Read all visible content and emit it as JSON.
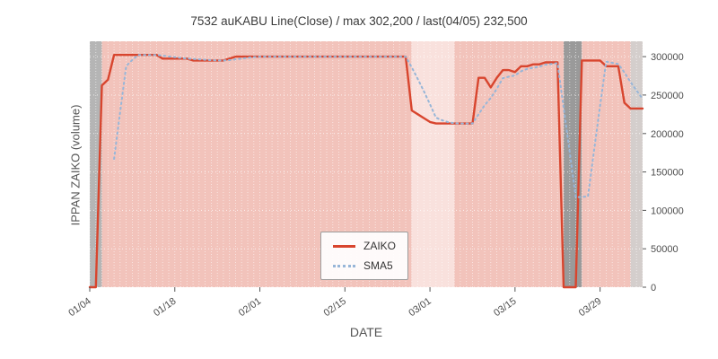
{
  "chart_data": {
    "type": "line",
    "title": "7532 auKABU Line(Close) / max 302,200 / last(04/05) 232,500",
    "xlabel": "DATE",
    "ylabel": "IPPAN ZAIKO (volume)",
    "ylim": [
      0,
      320000
    ],
    "yticks": [
      0,
      50000,
      100000,
      150000,
      200000,
      250000,
      300000
    ],
    "xtick_labels": [
      "01/04",
      "01/18",
      "02/01",
      "02/15",
      "03/01",
      "03/15",
      "03/29"
    ],
    "max_value": 302200,
    "last_value": 232500,
    "last_date": "04/05",
    "dates": [
      "01/04",
      "01/05",
      "01/06",
      "01/07",
      "01/08",
      "01/09",
      "01/10",
      "01/11",
      "01/12",
      "01/13",
      "01/14",
      "01/15",
      "01/16",
      "01/17",
      "01/18",
      "01/19",
      "01/20",
      "01/21",
      "01/22",
      "01/23",
      "01/24",
      "01/25",
      "01/26",
      "01/27",
      "01/28",
      "01/29",
      "01/30",
      "01/31",
      "02/01",
      "02/02",
      "02/03",
      "02/04",
      "02/05",
      "02/06",
      "02/07",
      "02/08",
      "02/09",
      "02/10",
      "02/11",
      "02/12",
      "02/13",
      "02/14",
      "02/15",
      "02/16",
      "02/17",
      "02/18",
      "02/19",
      "02/20",
      "02/21",
      "02/22",
      "02/23",
      "02/24",
      "02/25",
      "02/26",
      "02/27",
      "02/28",
      "03/01",
      "03/02",
      "03/03",
      "03/04",
      "03/05",
      "03/06",
      "03/07",
      "03/08",
      "03/09",
      "03/10",
      "03/11",
      "03/12",
      "03/13",
      "03/14",
      "03/15",
      "03/16",
      "03/17",
      "03/18",
      "03/19",
      "03/20",
      "03/21",
      "03/22",
      "03/23",
      "03/24",
      "03/25",
      "03/26",
      "03/27",
      "03/28",
      "03/29",
      "03/30",
      "03/31",
      "04/01",
      "04/02",
      "04/03",
      "04/04",
      "04/05"
    ],
    "series": [
      {
        "name": "ZAIKO",
        "color": "#d8452e",
        "style": "solid",
        "values": [
          0,
          0,
          262500,
          270000,
          302200,
          302200,
          302200,
          302200,
          302200,
          302200,
          302200,
          302200,
          297500,
          297500,
          297500,
          297500,
          297500,
          295000,
          295000,
          295000,
          295000,
          295000,
          295000,
          297500,
          300000,
          300000,
          300000,
          300000,
          300000,
          300000,
          300000,
          300000,
          300000,
          300000,
          300000,
          300000,
          300000,
          300000,
          300000,
          300000,
          300000,
          300000,
          300000,
          300000,
          300000,
          300000,
          300000,
          300000,
          300000,
          300000,
          300000,
          300000,
          300000,
          230000,
          225000,
          220000,
          215000,
          213000,
          213000,
          213000,
          213000,
          213000,
          213000,
          213000,
          272500,
          272500,
          260000,
          272500,
          282500,
          282500,
          280000,
          287500,
          287500,
          290000,
          290000,
          292500,
          292500,
          292500,
          0,
          0,
          0,
          295000,
          295000,
          295000,
          295000,
          287500,
          287500,
          287500,
          240000,
          232500,
          232500,
          232500
        ]
      },
      {
        "name": "SMA5",
        "color": "#97b6d8",
        "style": "dotted",
        "values": [
          null,
          null,
          null,
          null,
          166940,
          227380,
          287820,
          295760,
          302200,
          302200,
          302200,
          302200,
          301260,
          300320,
          299380,
          298440,
          297500,
          297000,
          296500,
          296000,
          295500,
          295000,
          295000,
          295500,
          296500,
          297500,
          298500,
          299500,
          300000,
          300000,
          300000,
          300000,
          300000,
          300000,
          300000,
          300000,
          300000,
          300000,
          300000,
          300000,
          300000,
          300000,
          300000,
          300000,
          300000,
          300000,
          300000,
          300000,
          300000,
          300000,
          300000,
          300000,
          300000,
          286000,
          271000,
          255000,
          238000,
          220600,
          217200,
          214800,
          213400,
          213000,
          213000,
          213000,
          224900,
          236800,
          246200,
          258100,
          272000,
          274000,
          275500,
          281000,
          284000,
          285500,
          287000,
          289500,
          290500,
          291500,
          233500,
          175500,
          117000,
          117500,
          118000,
          177000,
          236000,
          293500,
          292000,
          290500,
          279500,
          267000,
          256000,
          245000
        ]
      }
    ],
    "bands": [
      {
        "start": "01/04",
        "end": "01/06",
        "color": "#b5b5b5"
      },
      {
        "start": "01/06",
        "end": "02/26",
        "color": "#f2c3bb"
      },
      {
        "start": "02/26",
        "end": "03/05",
        "color": "#f9e1dd"
      },
      {
        "start": "03/05",
        "end": "03/23",
        "color": "#f2c3bb"
      },
      {
        "start": "03/23",
        "end": "03/26",
        "color": "#9a9a9a"
      },
      {
        "start": "03/26",
        "end": "04/03",
        "color": "#f2c3bb"
      },
      {
        "start": "04/03",
        "end": "04/05",
        "color": "#d4cecc"
      }
    ],
    "legend": {
      "position": "lower center",
      "entries": [
        "ZAIKO",
        "SMA5"
      ]
    },
    "grid": "white dashed, daily vertical + horizontal at yticks"
  }
}
